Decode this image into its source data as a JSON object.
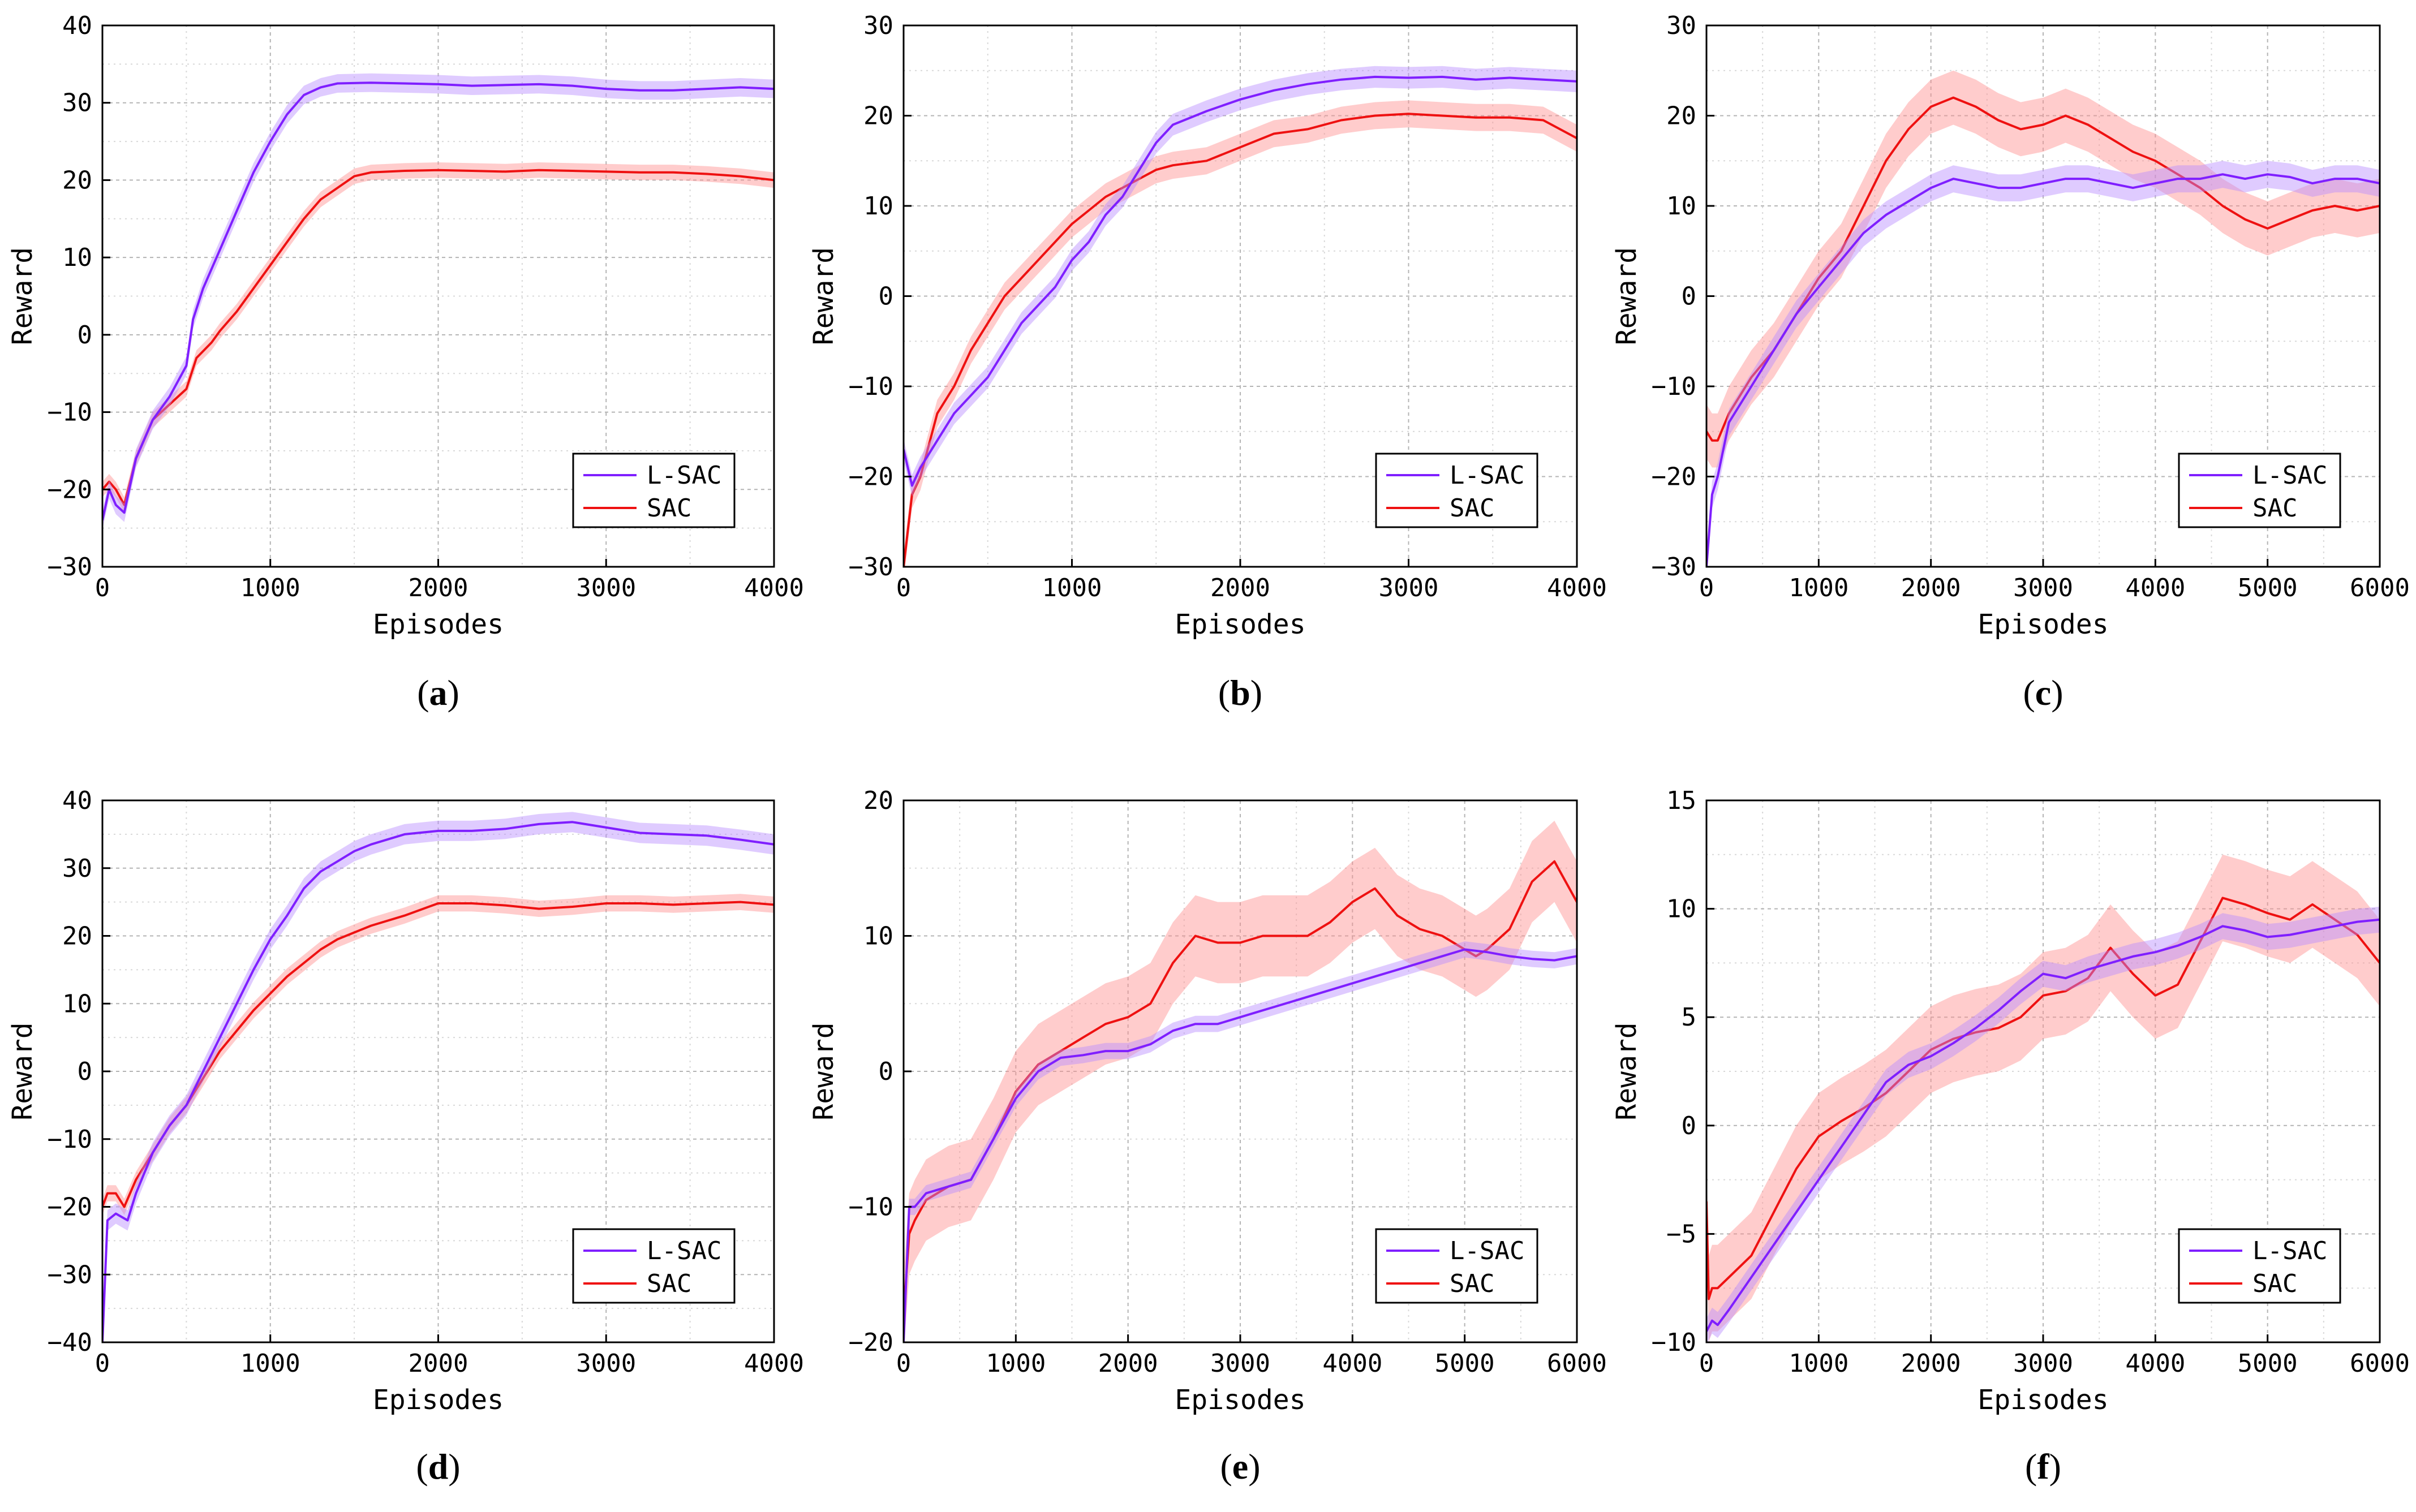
{
  "colors": {
    "L-SAC": "#7f1fff",
    "SAC": "#ee1111",
    "L-SAC_band": "#b98cff",
    "SAC_band": "#ff8f8f"
  },
  "chart_data": [
    {
      "panel": "a",
      "type": "line",
      "xlabel": "Episodes",
      "ylabel": "Reward",
      "xlim": [
        0,
        4000
      ],
      "ylim": [
        -30,
        40
      ],
      "xticks": [
        0,
        1000,
        2000,
        3000,
        4000
      ],
      "yticks": [
        -30,
        -20,
        -10,
        0,
        10,
        20,
        30,
        40
      ],
      "grid": true,
      "legend": "bottom-right",
      "series": [
        {
          "name": "L-SAC",
          "band": 1.2,
          "x": [
            0,
            40,
            80,
            130,
            200,
            300,
            400,
            500,
            540,
            600,
            700,
            800,
            900,
            1000,
            1100,
            1200,
            1300,
            1400,
            1600,
            1800,
            2000,
            2200,
            2400,
            2600,
            2800,
            3000,
            3200,
            3400,
            3600,
            3800,
            4000
          ],
          "y": [
            -24,
            -20,
            -22,
            -23,
            -16,
            -11,
            -8,
            -4,
            2,
            6,
            11,
            16,
            21,
            25,
            28.5,
            31,
            32,
            32.5,
            32.6,
            32.5,
            32.4,
            32.2,
            32.3,
            32.4,
            32.2,
            31.8,
            31.6,
            31.6,
            31.8,
            32,
            31.8
          ]
        },
        {
          "name": "SAC",
          "band": 1.0,
          "x": [
            0,
            40,
            80,
            130,
            200,
            300,
            400,
            500,
            560,
            650,
            700,
            800,
            900,
            1000,
            1100,
            1200,
            1300,
            1400,
            1500,
            1600,
            1800,
            2000,
            2200,
            2400,
            2600,
            2800,
            3000,
            3200,
            3400,
            3600,
            3800,
            4000
          ],
          "y": [
            -20,
            -19,
            -20,
            -22,
            -16,
            -11,
            -9,
            -7,
            -3,
            -1,
            0.5,
            3,
            6,
            9,
            12,
            15,
            17.5,
            19,
            20.5,
            21,
            21.2,
            21.3,
            21.2,
            21.1,
            21.3,
            21.2,
            21.1,
            21.0,
            21.0,
            20.8,
            20.5,
            20
          ]
        }
      ]
    },
    {
      "panel": "b",
      "type": "line",
      "xlabel": "Episodes",
      "ylabel": "Reward",
      "xlim": [
        0,
        4000
      ],
      "ylim": [
        -30,
        30
      ],
      "xticks": [
        0,
        1000,
        2000,
        3000,
        4000
      ],
      "yticks": [
        -30,
        -20,
        -10,
        0,
        10,
        20,
        30
      ],
      "grid": true,
      "legend": "bottom-right",
      "series": [
        {
          "name": "L-SAC",
          "band": 1.2,
          "x": [
            0,
            50,
            100,
            200,
            300,
            400,
            500,
            600,
            700,
            800,
            900,
            1000,
            1100,
            1200,
            1300,
            1400,
            1500,
            1600,
            1800,
            2000,
            2200,
            2400,
            2600,
            2800,
            3000,
            3200,
            3400,
            3600,
            3800,
            4000
          ],
          "y": [
            -17,
            -21,
            -19,
            -16,
            -13,
            -11,
            -9,
            -6,
            -3,
            -1,
            1,
            4,
            6,
            9,
            11,
            14,
            17,
            19,
            20.5,
            21.8,
            22.8,
            23.5,
            24,
            24.3,
            24.2,
            24.3,
            24,
            24.2,
            24,
            23.8
          ]
        },
        {
          "name": "SAC",
          "band": 1.5,
          "x": [
            0,
            50,
            100,
            200,
            300,
            400,
            500,
            600,
            700,
            800,
            900,
            1000,
            1100,
            1200,
            1300,
            1400,
            1500,
            1600,
            1800,
            2000,
            2200,
            2400,
            2600,
            2800,
            3000,
            3200,
            3400,
            3600,
            3800,
            4000
          ],
          "y": [
            -30,
            -22,
            -20,
            -13,
            -10,
            -6,
            -3,
            0,
            2,
            4,
            6,
            8,
            9.5,
            11,
            12,
            13,
            14,
            14.5,
            15,
            16.5,
            18,
            18.5,
            19.5,
            20,
            20.2,
            20,
            19.8,
            19.8,
            19.5,
            17.5
          ]
        }
      ]
    },
    {
      "panel": "c",
      "type": "line",
      "xlabel": "Episodes",
      "ylabel": "Reward",
      "xlim": [
        0,
        6000
      ],
      "ylim": [
        -30,
        30
      ],
      "xticks": [
        0,
        1000,
        2000,
        3000,
        4000,
        5000,
        6000
      ],
      "yticks": [
        -30,
        -20,
        -10,
        0,
        10,
        20,
        30
      ],
      "grid": true,
      "legend": "bottom-right",
      "series": [
        {
          "name": "L-SAC",
          "band": 1.5,
          "x": [
            0,
            50,
            100,
            200,
            400,
            600,
            800,
            1000,
            1200,
            1400,
            1600,
            1800,
            2000,
            2200,
            2400,
            2600,
            2800,
            3000,
            3200,
            3400,
            3600,
            3800,
            4000,
            4200,
            4400,
            4600,
            4800,
            5000,
            5200,
            5400,
            5600,
            5800,
            6000
          ],
          "y": [
            -30,
            -22,
            -20,
            -14,
            -10,
            -6,
            -2,
            1,
            4,
            7,
            9,
            10.5,
            12,
            13,
            12.5,
            12,
            12,
            12.5,
            13,
            13,
            12.5,
            12,
            12.5,
            13,
            13,
            13.5,
            13,
            13.5,
            13.2,
            12.5,
            13,
            13,
            12.5
          ]
        },
        {
          "name": "SAC",
          "band": 3.0,
          "x": [
            0,
            50,
            100,
            200,
            400,
            600,
            800,
            1000,
            1200,
            1400,
            1600,
            1800,
            2000,
            2200,
            2400,
            2600,
            2800,
            3000,
            3200,
            3400,
            3600,
            3800,
            4000,
            4200,
            4400,
            4600,
            4800,
            5000,
            5200,
            5400,
            5600,
            5800,
            6000
          ],
          "y": [
            -15,
            -16,
            -16,
            -13,
            -9,
            -6,
            -2,
            2,
            5,
            10,
            15,
            18.5,
            21,
            22,
            21,
            19.5,
            18.5,
            19,
            20,
            19,
            17.5,
            16,
            15,
            13.5,
            12,
            10,
            8.5,
            7.5,
            8.5,
            9.5,
            10,
            9.5,
            10
          ]
        }
      ]
    },
    {
      "panel": "d",
      "type": "line",
      "xlabel": "Episodes",
      "ylabel": "Reward",
      "xlim": [
        0,
        4000
      ],
      "ylim": [
        -40,
        40
      ],
      "xticks": [
        0,
        1000,
        2000,
        3000,
        4000
      ],
      "yticks": [
        -40,
        -30,
        -20,
        -10,
        0,
        10,
        20,
        30,
        40
      ],
      "grid": true,
      "legend": "bottom-right",
      "series": [
        {
          "name": "L-SAC",
          "band": 1.5,
          "x": [
            0,
            30,
            80,
            150,
            200,
            300,
            400,
            500,
            600,
            700,
            800,
            900,
            1000,
            1100,
            1200,
            1300,
            1400,
            1500,
            1600,
            1800,
            2000,
            2200,
            2400,
            2600,
            2800,
            3000,
            3200,
            3400,
            3600,
            3800,
            4000
          ],
          "y": [
            -40,
            -22,
            -21,
            -22,
            -18,
            -12,
            -8,
            -5,
            0,
            5,
            10,
            15,
            19.5,
            23,
            27,
            29.5,
            31,
            32.5,
            33.5,
            35,
            35.5,
            35.5,
            35.8,
            36.5,
            36.8,
            36,
            35.2,
            35,
            34.8,
            34.2,
            33.5
          ]
        },
        {
          "name": "SAC",
          "band": 1.2,
          "x": [
            0,
            30,
            80,
            130,
            200,
            300,
            400,
            500,
            600,
            700,
            800,
            900,
            1000,
            1100,
            1200,
            1300,
            1400,
            1500,
            1600,
            1800,
            2000,
            2200,
            2400,
            2600,
            2800,
            3000,
            3200,
            3400,
            3600,
            3800,
            4000
          ],
          "y": [
            -20,
            -18,
            -18,
            -20,
            -16,
            -12,
            -8,
            -5,
            -1,
            3,
            6,
            9,
            11.5,
            14,
            16,
            18,
            19.5,
            20.5,
            21.5,
            23,
            24.8,
            24.8,
            24.5,
            24,
            24.3,
            24.8,
            24.8,
            24.6,
            24.8,
            25,
            24.6
          ]
        }
      ]
    },
    {
      "panel": "e",
      "type": "line",
      "xlabel": "Episodes",
      "ylabel": "Reward",
      "xlim": [
        0,
        6000
      ],
      "ylim": [
        -20,
        20
      ],
      "xticks": [
        0,
        1000,
        2000,
        3000,
        4000,
        5000,
        6000
      ],
      "yticks": [
        -20,
        -10,
        0,
        10,
        20
      ],
      "grid": true,
      "legend": "bottom-right",
      "series": [
        {
          "name": "L-SAC",
          "band": 0.6,
          "x": [
            0,
            50,
            100,
            200,
            400,
            600,
            800,
            1000,
            1200,
            1400,
            1600,
            1800,
            2000,
            2200,
            2400,
            2600,
            2800,
            3000,
            3200,
            3400,
            3600,
            3800,
            4000,
            4200,
            4400,
            4600,
            4800,
            5000,
            5200,
            5400,
            5600,
            5800,
            6000
          ],
          "y": [
            -20,
            -10,
            -10,
            -9,
            -8.5,
            -8,
            -5,
            -2,
            0,
            1,
            1.2,
            1.5,
            1.5,
            2,
            3,
            3.5,
            3.5,
            4,
            4.5,
            5,
            5.5,
            6,
            6.5,
            7,
            7.5,
            8,
            8.5,
            9,
            8.8,
            8.5,
            8.3,
            8.2,
            8.5
          ]
        },
        {
          "name": "SAC",
          "band": 3.0,
          "x": [
            0,
            50,
            100,
            200,
            400,
            600,
            800,
            1000,
            1200,
            1400,
            1600,
            1800,
            2000,
            2200,
            2400,
            2600,
            2800,
            3000,
            3200,
            3400,
            3600,
            3800,
            4000,
            4200,
            4400,
            4600,
            4800,
            5000,
            5100,
            5200,
            5400,
            5600,
            5800,
            6000
          ],
          "y": [
            -18,
            -12,
            -11,
            -9.5,
            -8.5,
            -8,
            -5,
            -1.5,
            0.5,
            1.5,
            2.5,
            3.5,
            4,
            5,
            8,
            10,
            9.5,
            9.5,
            10,
            10,
            10,
            11,
            12.5,
            13.5,
            11.5,
            10.5,
            10,
            9,
            8.5,
            9,
            10.5,
            14,
            15.5,
            12.5
          ]
        }
      ]
    },
    {
      "panel": "f",
      "type": "line",
      "xlabel": "Episodes",
      "ylabel": "Reward",
      "xlim": [
        0,
        6000
      ],
      "ylim": [
        -10,
        15
      ],
      "xticks": [
        0,
        1000,
        2000,
        3000,
        4000,
        5000,
        6000
      ],
      "yticks": [
        -10,
        -5,
        0,
        5,
        10,
        15
      ],
      "grid": true,
      "legend": "bottom-right",
      "series": [
        {
          "name": "L-SAC",
          "band": 0.6,
          "x": [
            0,
            50,
            100,
            200,
            400,
            600,
            800,
            1000,
            1200,
            1400,
            1600,
            1800,
            2000,
            2200,
            2400,
            2600,
            2800,
            3000,
            3200,
            3400,
            3600,
            3800,
            4000,
            4200,
            4400,
            4600,
            4800,
            5000,
            5200,
            5400,
            5600,
            5800,
            6000
          ],
          "y": [
            -9.5,
            -9,
            -9.2,
            -8.5,
            -7,
            -5.5,
            -4,
            -2.5,
            -1,
            0.5,
            2,
            2.8,
            3.2,
            3.8,
            4.5,
            5.3,
            6.2,
            7,
            6.8,
            7.2,
            7.5,
            7.8,
            8,
            8.3,
            8.7,
            9.2,
            9,
            8.7,
            8.8,
            9,
            9.2,
            9.4,
            9.5
          ]
        },
        {
          "name": "SAC",
          "band": 2.0,
          "x": [
            0,
            20,
            50,
            100,
            200,
            400,
            600,
            800,
            1000,
            1200,
            1400,
            1600,
            1800,
            2000,
            2200,
            2400,
            2600,
            2800,
            3000,
            3200,
            3400,
            3600,
            3800,
            4000,
            4200,
            4400,
            4600,
            4800,
            5000,
            5200,
            5400,
            5600,
            5800,
            6000
          ],
          "y": [
            -3.5,
            -8,
            -7.5,
            -7.5,
            -7,
            -6,
            -4,
            -2,
            -0.5,
            0.2,
            0.8,
            1.5,
            2.5,
            3.5,
            4,
            4.3,
            4.5,
            5,
            6,
            6.2,
            6.8,
            8.2,
            7,
            6,
            6.5,
            8.5,
            10.5,
            10.2,
            9.8,
            9.5,
            10.2,
            9.5,
            8.8,
            7.5
          ]
        }
      ]
    }
  ],
  "panel_labels": [
    "a",
    "b",
    "c",
    "d",
    "e",
    "f"
  ]
}
